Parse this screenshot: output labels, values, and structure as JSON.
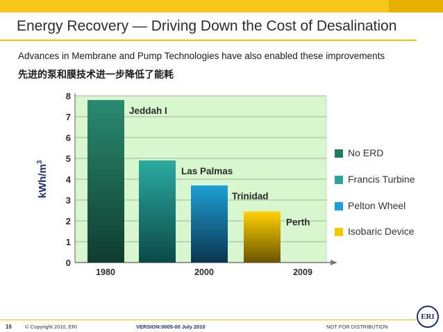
{
  "header": {
    "title": "Energy Recovery — Driving Down the Cost of Desalination",
    "subtitle": "Advances in Membrane and Pump Technologies have also enabled these improvements",
    "subtitle_cn": "先进的泵和膜技术进一步降低了能耗"
  },
  "chart_data": {
    "type": "bar",
    "ylabel": "kWh/m3",
    "ylim": [
      0,
      8
    ],
    "yticks": [
      "0",
      "1",
      "2",
      "3",
      "4",
      "5",
      "6",
      "7",
      "8"
    ],
    "xticks": [
      "1980",
      "2000",
      "2009"
    ],
    "grid": true,
    "legend_position": "right",
    "bars": [
      {
        "label": "Jeddah I",
        "value": 7.8,
        "category": "No ERD",
        "color_top": "#2a8a70",
        "color_bottom": "#0f3d30"
      },
      {
        "label": "Las Palmas",
        "value": 4.9,
        "category": "Francis Turbine",
        "color_top": "#2aaaa0",
        "color_bottom": "#0c4a48"
      },
      {
        "label": "Trinidad",
        "value": 3.7,
        "category": "Pelton Wheel",
        "color_top": "#1e9fd4",
        "color_bottom": "#0b3550"
      },
      {
        "label": "Perth",
        "value": 2.45,
        "category": "Isobaric Device",
        "color_top": "#ffd200",
        "color_bottom": "#6b5400"
      }
    ],
    "legend": [
      {
        "label": "No ERD",
        "color": "#1f7a60"
      },
      {
        "label": "Francis Turbine",
        "color": "#2aa39c"
      },
      {
        "label": "Pelton Wheel",
        "color": "#1aa0d8"
      },
      {
        "label": "Isobaric Device",
        "color": "#f6c800"
      }
    ],
    "plot_bg": "#d9f7cf"
  },
  "footer": {
    "page": "16",
    "copyright": "© Copyright 2010, ERI",
    "version": "VERSION:0005-00 July 2010",
    "notice": "NOT FOR DISTRIBUTION",
    "logo": "ERI"
  }
}
